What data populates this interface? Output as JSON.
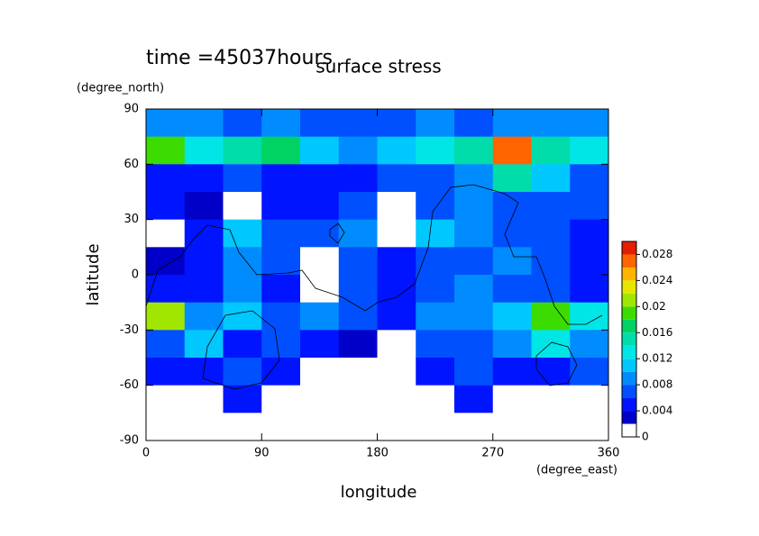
{
  "chart_data": {
    "type": "contour",
    "title": "surface stress",
    "subtitle": "time =45037hours",
    "x_label": "longitude",
    "x_unit": "(degree_east)",
    "y_label": "latitude",
    "y_unit": "(degree_north)",
    "xlim": [
      0,
      360
    ],
    "xticks": [
      0,
      90,
      180,
      270,
      360
    ],
    "ylim": [
      -90,
      90
    ],
    "yticks": [
      -90,
      -60,
      -30,
      0,
      30,
      60,
      90
    ],
    "x": [
      15,
      45,
      75,
      105,
      135,
      165,
      195,
      225,
      255,
      285,
      315,
      345
    ],
    "y": [
      82.5,
      67.5,
      52.5,
      37.5,
      22.5,
      7.5,
      -7.5,
      -22.5,
      -37.5,
      -52.5,
      -67.5,
      -82.5
    ],
    "z": [
      [
        0.008,
        0.008,
        0.006,
        0.008,
        0.006,
        0.006,
        0.006,
        0.008,
        0.006,
        0.008,
        0.008,
        0.008
      ],
      [
        0.018,
        0.012,
        0.014,
        0.016,
        0.01,
        0.008,
        0.01,
        0.012,
        0.014,
        0.026,
        0.014,
        0.012
      ],
      [
        0.004,
        0.004,
        0.006,
        0.004,
        0.004,
        0.004,
        0.006,
        0.006,
        0.008,
        0.014,
        0.01,
        0.006
      ],
      [
        0.004,
        0.003,
        0.001,
        0.004,
        0.004,
        0.006,
        0.001,
        0.006,
        0.008,
        0.006,
        0.006,
        0.006
      ],
      [
        0.001,
        0.004,
        0.01,
        0.006,
        0.006,
        0.008,
        0.001,
        0.01,
        0.008,
        0.006,
        0.006,
        0.004
      ],
      [
        0.002,
        0.004,
        0.008,
        0.006,
        0.001,
        0.006,
        0.004,
        0.006,
        0.006,
        0.008,
        0.006,
        0.004
      ],
      [
        0.004,
        0.004,
        0.008,
        0.004,
        0.001,
        0.006,
        0.004,
        0.006,
        0.008,
        0.006,
        0.006,
        0.004
      ],
      [
        0.02,
        0.008,
        0.01,
        0.006,
        0.008,
        0.006,
        0.004,
        0.008,
        0.008,
        0.01,
        0.018,
        0.012
      ],
      [
        0.006,
        0.01,
        0.004,
        0.006,
        0.004,
        0.002,
        0.001,
        0.006,
        0.006,
        0.008,
        0.012,
        0.008
      ],
      [
        0.004,
        0.004,
        0.006,
        0.004,
        0.001,
        0.001,
        0.001,
        0.004,
        0.006,
        0.004,
        0.004,
        0.006
      ],
      [
        0.001,
        0.001,
        0.004,
        0.001,
        0.001,
        0.001,
        0.001,
        0.001,
        0.004,
        0.001,
        0.001,
        0.001
      ],
      [
        0,
        0,
        0,
        0,
        0,
        0,
        0,
        0,
        0,
        0,
        0,
        0
      ]
    ],
    "levels": [
      0,
      0.002,
      0.004,
      0.006,
      0.008,
      0.01,
      0.012,
      0.014,
      0.016,
      0.018,
      0.02,
      0.022,
      0.024,
      0.026,
      0.028,
      0.03
    ],
    "colors": [
      "#ffffff",
      "#0000c8",
      "#0014ff",
      "#0050ff",
      "#008cff",
      "#00c8ff",
      "#00e6e6",
      "#00dcaa",
      "#00d264",
      "#3cdc00",
      "#a0e600",
      "#e6e600",
      "#ffb400",
      "#ff6400",
      "#e61e00"
    ],
    "colorbar_ticks": [
      0,
      0.004,
      0.008,
      0.012,
      0.016,
      0.02,
      0.024,
      0.028
    ]
  }
}
